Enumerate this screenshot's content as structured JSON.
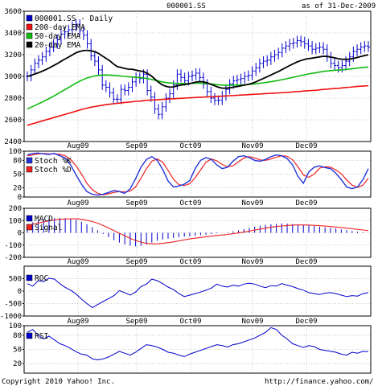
{
  "header": {
    "symbol": "000001.SS",
    "as_of": "as of 31-Dec-2009"
  },
  "footer": {
    "copyright": "Copyright 2010 Yahoo! Inc.",
    "url": "http://finance.yahoo.com/"
  },
  "colors": {
    "price": "#0000cc",
    "ema200": "#ee1111",
    "ema50": "#11bb11",
    "ema20": "#000000",
    "stoch_k": "#2233dd",
    "stoch_d": "#ee2222",
    "macd": "#0000cc",
    "signal": "#ee2222",
    "roc": "#0000cc",
    "rsi": "#0000cc",
    "grid": "#bbbbbb"
  },
  "chart_data": [
    {
      "type": "ohlc",
      "panel": "price",
      "x_labels": [
        "Aug09",
        "Sep09",
        "Oct09",
        "Nov09",
        "Dec09"
      ],
      "ylim": [
        2400,
        3600
      ],
      "y_ticks": [
        2400,
        2600,
        2800,
        3000,
        3200,
        3400,
        3600
      ],
      "legend": [
        "000001.SS - Daily",
        "200-day EMA",
        "50-day EMA",
        "20-day EMA"
      ],
      "close": [
        3000,
        3060,
        3120,
        3150,
        3180,
        3230,
        3270,
        3300,
        3340,
        3390,
        3410,
        3430,
        3460,
        3480,
        3420,
        3380,
        3300,
        3190,
        3140,
        3060,
        2920,
        2900,
        2850,
        2790,
        2790,
        2880,
        2870,
        2900,
        2950,
        2990,
        2980,
        3020,
        2870,
        2810,
        2700,
        2650,
        2720,
        2800,
        2840,
        2920,
        3020,
        2990,
        2960,
        3000,
        3010,
        3030,
        2990,
        2930,
        2860,
        2800,
        2780,
        2780,
        2820,
        2880,
        2930,
        2960,
        2970,
        2980,
        3000,
        3010,
        3050,
        3080,
        3120,
        3140,
        3150,
        3180,
        3200,
        3220,
        3260,
        3280,
        3300,
        3310,
        3330,
        3320,
        3300,
        3280,
        3250,
        3260,
        3270,
        3250,
        3180,
        3120,
        3100,
        3080,
        3100,
        3140,
        3180,
        3230,
        3250,
        3270,
        3280,
        3270
      ],
      "ema20": [
        3000,
        3010,
        3022,
        3034,
        3048,
        3064,
        3081,
        3099,
        3118,
        3139,
        3159,
        3178,
        3198,
        3218,
        3230,
        3238,
        3240,
        3236,
        3228,
        3212,
        3188,
        3167,
        3144,
        3114,
        3090,
        3082,
        3073,
        3067,
        3066,
        3058,
        3050,
        3045,
        3028,
        3007,
        2976,
        2946,
        2922,
        2908,
        2901,
        2903,
        2913,
        2921,
        2925,
        2932,
        2939,
        2948,
        2952,
        2950,
        2941,
        2927,
        2913,
        2900,
        2892,
        2891,
        2895,
        2901,
        2907,
        2913,
        2920,
        2927,
        2937,
        2950,
        2966,
        2981,
        2997,
        3013,
        3029,
        3045,
        3064,
        3082,
        3100,
        3116,
        3133,
        3146,
        3156,
        3164,
        3168,
        3174,
        3180,
        3185,
        3184,
        3178,
        3171,
        3163,
        3158,
        3157,
        3159,
        3166,
        3174,
        3183,
        3192,
        3199
      ],
      "ema50": [
        2700,
        2716,
        2732,
        2748,
        2764,
        2782,
        2800,
        2818,
        2838,
        2858,
        2878,
        2898,
        2918,
        2938,
        2956,
        2972,
        2986,
        2996,
        3004,
        3010,
        3012,
        3013,
        3012,
        3010,
        3007,
        3004,
        3000,
        2997,
        2994,
        2991,
        2988,
        2985,
        2980,
        2973,
        2965,
        2957,
        2950,
        2944,
        2939,
        2936,
        2935,
        2934,
        2934,
        2935,
        2936,
        2937,
        2937,
        2936,
        2934,
        2931,
        2927,
        2923,
        2920,
        2918,
        2918,
        2919,
        2920,
        2921,
        2923,
        2925,
        2928,
        2932,
        2936,
        2941,
        2946,
        2951,
        2957,
        2963,
        2970,
        2977,
        2985,
        2992,
        3000,
        3008,
        3015,
        3022,
        3028,
        3034,
        3040,
        3046,
        3050,
        3053,
        3056,
        3058,
        3061,
        3064,
        3068,
        3072,
        3076,
        3080,
        3084,
        3087
      ],
      "ema200": [
        2550,
        2560,
        2570,
        2580,
        2590,
        2600,
        2610,
        2620,
        2630,
        2640,
        2650,
        2660,
        2670,
        2680,
        2690,
        2700,
        2708,
        2716,
        2722,
        2728,
        2734,
        2740,
        2744,
        2748,
        2752,
        2756,
        2760,
        2762,
        2766,
        2770,
        2772,
        2776,
        2780,
        2782,
        2784,
        2786,
        2788,
        2790,
        2792,
        2794,
        2796,
        2798,
        2800,
        2802,
        2804,
        2806,
        2808,
        2810,
        2812,
        2812,
        2814,
        2816,
        2818,
        2820,
        2822,
        2824,
        2826,
        2828,
        2830,
        2832,
        2834,
        2836,
        2838,
        2840,
        2842,
        2844,
        2846,
        2848,
        2850,
        2852,
        2854,
        2858,
        2860,
        2862,
        2866,
        2868,
        2870,
        2872,
        2876,
        2880,
        2882,
        2886,
        2888,
        2890,
        2894,
        2898,
        2900,
        2904,
        2908,
        2910,
        2912,
        2915
      ]
    },
    {
      "type": "line",
      "panel": "stochastic",
      "ylim": [
        0,
        100
      ],
      "y_ticks": [
        0,
        20,
        50,
        80,
        100
      ],
      "series": [
        {
          "name": "Stoch %K",
          "values": [
            92,
            95,
            96,
            94,
            93,
            95,
            90,
            85,
            70,
            48,
            28,
            12,
            6,
            4,
            6,
            10,
            14,
            12,
            8,
            18,
            40,
            65,
            82,
            88,
            80,
            60,
            35,
            22,
            24,
            28,
            36,
            62,
            80,
            86,
            82,
            70,
            62,
            65,
            78,
            88,
            90,
            86,
            80,
            78,
            82,
            88,
            92,
            90,
            84,
            70,
            45,
            30,
            55,
            65,
            68,
            64,
            62,
            52,
            38,
            22,
            18,
            22,
            38,
            62
          ]
        },
        {
          "name": "Stoch %D",
          "values": [
            90,
            92,
            94,
            95,
            94,
            94,
            93,
            90,
            82,
            68,
            50,
            30,
            16,
            8,
            5,
            7,
            10,
            12,
            11,
            13,
            22,
            41,
            62,
            78,
            83,
            76,
            58,
            39,
            27,
            25,
            29,
            42,
            59,
            76,
            83,
            79,
            71,
            66,
            68,
            77,
            85,
            88,
            85,
            81,
            80,
            83,
            87,
            90,
            89,
            81,
            66,
            48,
            43,
            50,
            63,
            66,
            65,
            59,
            51,
            37,
            26,
            21,
            26,
            41
          ]
        }
      ]
    },
    {
      "type": "bar+line",
      "panel": "macd",
      "ylim": [
        -200,
        200
      ],
      "y_ticks": [
        -200,
        -100,
        0,
        100,
        200
      ],
      "series": [
        {
          "name": "MACD",
          "values": [
            70,
            85,
            100,
            110,
            115,
            120,
            122,
            120,
            115,
            105,
            90,
            70,
            45,
            20,
            -10,
            -35,
            -60,
            -80,
            -95,
            -105,
            -110,
            -105,
            -95,
            -80,
            -65,
            -55,
            -48,
            -42,
            -35,
            -30,
            -28,
            -25,
            -20,
            -15,
            -10,
            -5,
            0,
            5,
            12,
            20,
            30,
            40,
            50,
            58,
            64,
            70,
            74,
            76,
            75,
            72,
            68,
            64,
            60,
            55,
            50,
            45,
            40,
            35,
            28,
            22,
            15,
            10,
            5,
            0
          ]
        },
        {
          "name": "Signal",
          "values": [
            60,
            70,
            80,
            90,
            98,
            105,
            110,
            113,
            115,
            114,
            110,
            102,
            92,
            78,
            60,
            40,
            18,
            -4,
            -25,
            -45,
            -62,
            -76,
            -86,
            -90,
            -90,
            -86,
            -80,
            -74,
            -66,
            -58,
            -50,
            -44,
            -38,
            -32,
            -27,
            -22,
            -18,
            -13,
            -7,
            -1,
            6,
            14,
            22,
            30,
            38,
            45,
            51,
            56,
            60,
            63,
            64,
            64,
            63,
            61,
            58,
            55,
            51,
            47,
            43,
            38,
            33,
            28,
            23,
            18
          ]
        }
      ]
    },
    {
      "type": "line",
      "panel": "roc",
      "ylim": [
        -1000,
        1000
      ],
      "y_ticks": [
        -1000,
        -500,
        0,
        500
      ],
      "series": [
        {
          "name": "ROC",
          "values": [
            300,
            200,
            420,
            380,
            520,
            480,
            300,
            150,
            40,
            -120,
            -320,
            -500,
            -660,
            -540,
            -420,
            -300,
            -180,
            20,
            -60,
            -160,
            -40,
            180,
            280,
            480,
            420,
            300,
            160,
            60,
            -100,
            -220,
            -160,
            -100,
            -40,
            40,
            120,
            280,
            200,
            160,
            240,
            200,
            280,
            320,
            280,
            200,
            140,
            220,
            200,
            300,
            240,
            180,
            100,
            40,
            -60,
            -100,
            -140,
            -80,
            -60,
            -100,
            -160,
            -220,
            -180,
            -200,
            -100,
            -60
          ]
        }
      ]
    },
    {
      "type": "line",
      "panel": "rsi",
      "ylim": [
        0,
        100
      ],
      "y_ticks": [
        20,
        50,
        80,
        100
      ],
      "series": [
        {
          "name": "RSI",
          "values": [
            86,
            92,
            80,
            72,
            78,
            70,
            62,
            58,
            52,
            45,
            40,
            38,
            30,
            28,
            30,
            34,
            40,
            46,
            42,
            38,
            44,
            52,
            60,
            58,
            55,
            50,
            44,
            42,
            38,
            35,
            40,
            44,
            48,
            52,
            56,
            60,
            58,
            55,
            60,
            62,
            66,
            70,
            74,
            80,
            86,
            96,
            92,
            80,
            72,
            62,
            58,
            54,
            58,
            56,
            50,
            48,
            46,
            44,
            40,
            38,
            44,
            42,
            46,
            45
          ]
        }
      ]
    }
  ]
}
